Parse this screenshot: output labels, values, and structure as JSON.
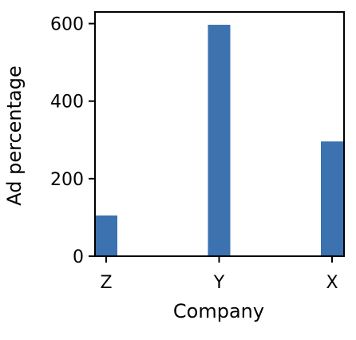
{
  "chart_data": {
    "type": "bar",
    "categories": [
      "Z",
      "Y",
      "X"
    ],
    "values": [
      105,
      597,
      296
    ],
    "title": "",
    "xlabel": "Company",
    "ylabel": "Ad percentage",
    "ylim": [
      0,
      630
    ],
    "y_ticks": [
      0,
      200,
      400,
      600
    ],
    "grid": false,
    "colors": {
      "bar": "#3b72af",
      "axis": "#000000",
      "background": "#ffffff"
    }
  }
}
